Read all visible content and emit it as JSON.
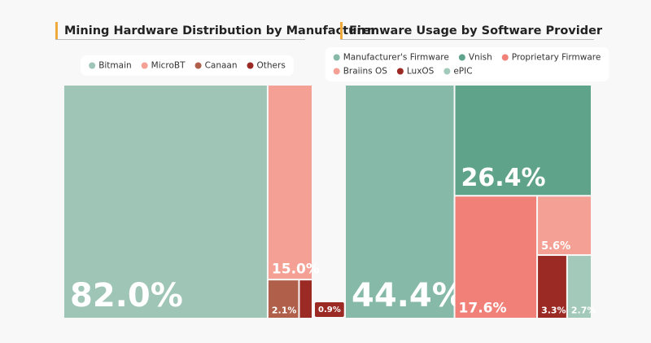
{
  "chart_data": [
    {
      "type": "treemap",
      "title": "Mining Hardware Distribution by Manufacturer",
      "categories": [
        "Bitmain",
        "MicroBT",
        "Canaan",
        "Others"
      ],
      "values": [
        82.0,
        15.0,
        2.1,
        0.9
      ],
      "value_labels": [
        "82.0%",
        "15.0%",
        "2.1%",
        "0.9%"
      ],
      "colors": [
        "#9fc5b7",
        "#f4a094",
        "#b0604a",
        "#9b2a24"
      ]
    },
    {
      "type": "treemap",
      "title": "Firmware Usage by Software Provider",
      "categories": [
        "Manufacturer's Firmware",
        "Vnish",
        "Proprietary Firmware",
        "Braiins OS",
        "LuxOS",
        "ePIC"
      ],
      "values": [
        44.4,
        26.4,
        17.6,
        5.6,
        3.3,
        2.7
      ],
      "value_labels": [
        "44.4%",
        "26.4%",
        "17.6%",
        "5.6%",
        "3.3%",
        "2.7%"
      ],
      "colors": [
        "#86b9a7",
        "#5fa38a",
        "#f08078",
        "#f4a094",
        "#9b2a24",
        "#a3c9bb"
      ]
    }
  ]
}
